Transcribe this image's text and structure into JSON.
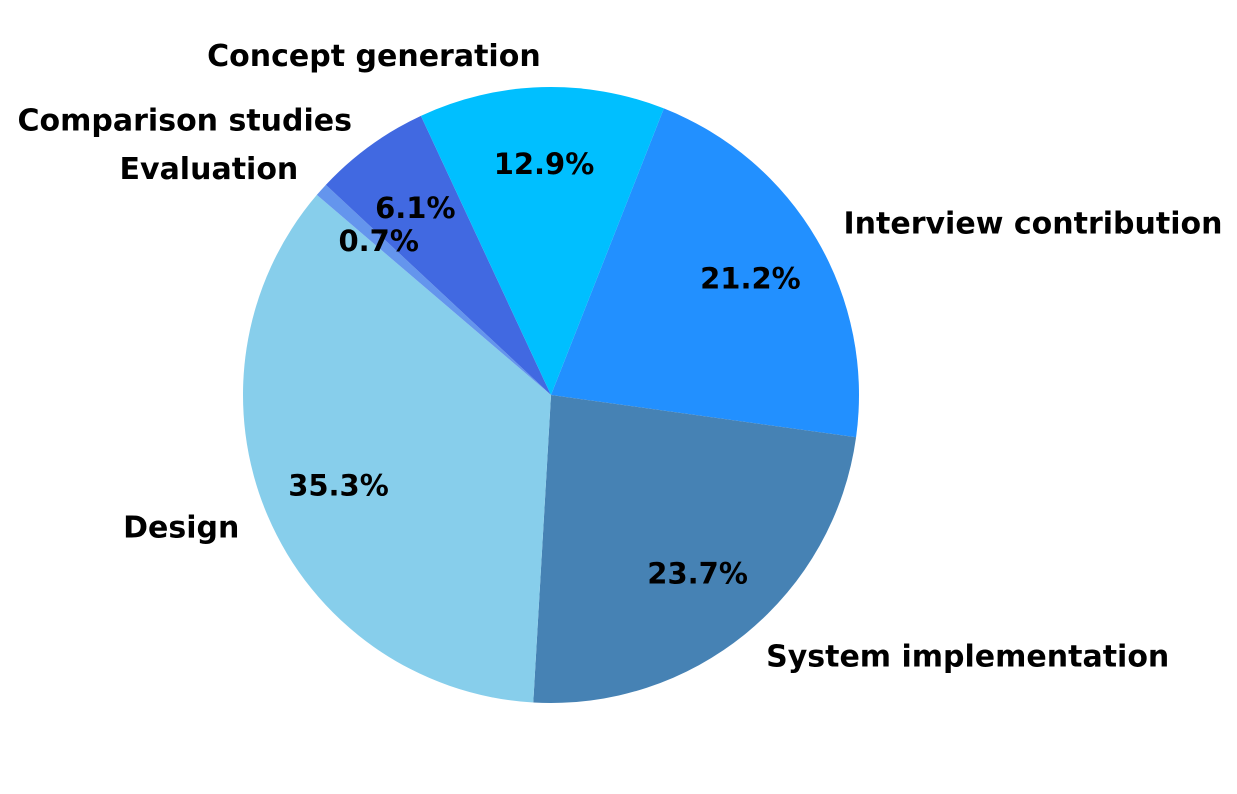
{
  "chart_data": {
    "type": "pie",
    "title": "",
    "categories": [
      "Interview contribution",
      "System implementation",
      "Design",
      "Evaluation",
      "Comparison studies",
      "Concept generation"
    ],
    "values": [
      21.2,
      23.7,
      35.3,
      0.7,
      6.1,
      12.9
    ],
    "percent_labels": [
      "21.2%",
      "23.7%",
      "35.3%",
      "0.7%",
      "6.1%",
      "12.9%"
    ],
    "colors": [
      "#2290ff",
      "#4682b4",
      "#87ceeb",
      "#6495ed",
      "#4169e1",
      "#00bfff"
    ],
    "start_angle_deg": -68.5,
    "direction": "clockwise",
    "legend": "none"
  }
}
